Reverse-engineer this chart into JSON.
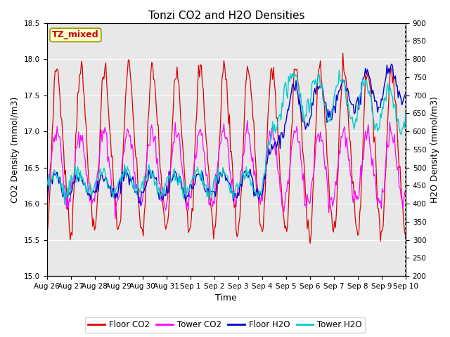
{
  "title": "Tonzi CO2 and H2O Densities",
  "xlabel": "Time",
  "ylabel_left": "CO2 Density (mmol/m3)",
  "ylabel_right": "H2O Density (mmol/m3)",
  "co2_ylim": [
    15.0,
    18.5
  ],
  "h2o_ylim": [
    200,
    900
  ],
  "co2_yticks": [
    15.0,
    15.5,
    16.0,
    16.5,
    17.0,
    17.5,
    18.0,
    18.5
  ],
  "h2o_yticks": [
    200,
    250,
    300,
    350,
    400,
    450,
    500,
    550,
    600,
    650,
    700,
    750,
    800,
    850,
    900
  ],
  "xtick_labels": [
    "Aug 26",
    "Aug 27",
    "Aug 28",
    "Aug 29",
    "Aug 30",
    "Aug 31",
    "Sep 1",
    "Sep 2",
    "Sep 3",
    "Sep 4",
    "Sep 5",
    "Sep 6",
    "Sep 7",
    "Sep 8",
    "Sep 9",
    "Sep 10"
  ],
  "annotation_text": "TZ_mixed",
  "annotation_color": "#cc0000",
  "annotation_bg": "#ffffcc",
  "annotation_edge": "#999900",
  "floor_co2_color": "#dd0000",
  "tower_co2_color": "#ff00ff",
  "floor_h2o_color": "#0000cc",
  "tower_h2o_color": "#00cccc",
  "legend_labels": [
    "Floor CO2",
    "Tower CO2",
    "Floor H2O",
    "Tower H2O"
  ],
  "bg_color": "#e8e8e8",
  "title_fontsize": 11,
  "label_fontsize": 9,
  "tick_fontsize": 7.5,
  "legend_fontsize": 8.5
}
